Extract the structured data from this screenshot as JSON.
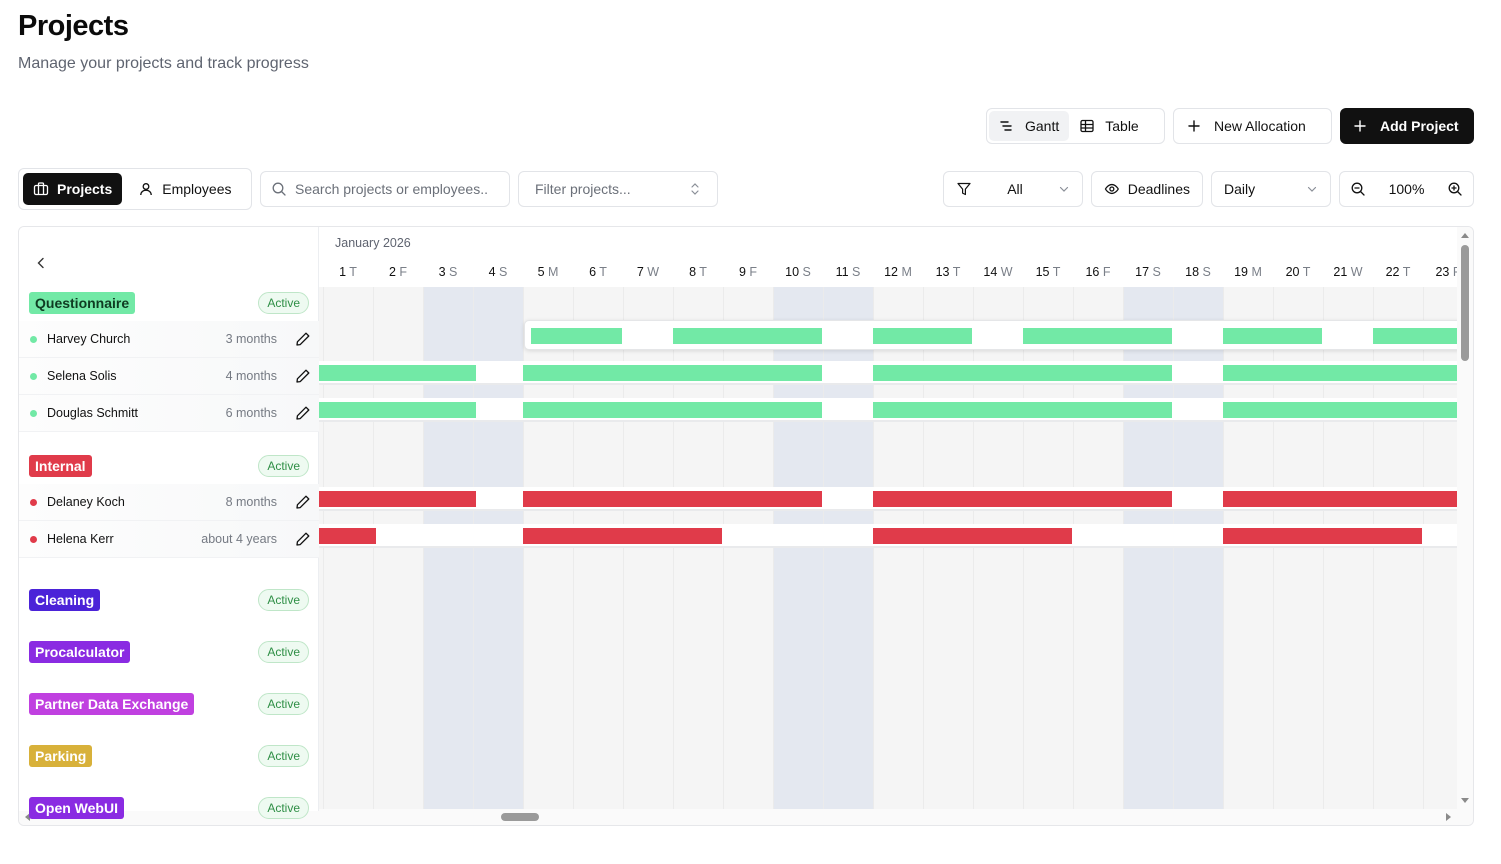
{
  "header": {
    "title": "Projects",
    "subtitle": "Manage your projects and track progress"
  },
  "actions": {
    "view_gantt": "Gantt",
    "view_table": "Table",
    "new_allocation": "New Allocation",
    "add_project": "Add Project"
  },
  "toolbar": {
    "tab_projects": "Projects",
    "tab_employees": "Employees",
    "search_placeholder": "Search projects or employees..",
    "filter_placeholder": "Filter projects...",
    "status_filter": "All",
    "deadlines": "Deadlines",
    "scale": "Daily",
    "zoom": "100%"
  },
  "timeline": {
    "month": "January 2026",
    "days": [
      {
        "n": "1",
        "d": "T",
        "weekend": false
      },
      {
        "n": "2",
        "d": "F",
        "weekend": false
      },
      {
        "n": "3",
        "d": "S",
        "weekend": true
      },
      {
        "n": "4",
        "d": "S",
        "weekend": true
      },
      {
        "n": "5",
        "d": "M",
        "weekend": false
      },
      {
        "n": "6",
        "d": "T",
        "weekend": false
      },
      {
        "n": "7",
        "d": "W",
        "weekend": false
      },
      {
        "n": "8",
        "d": "T",
        "weekend": false
      },
      {
        "n": "9",
        "d": "F",
        "weekend": false
      },
      {
        "n": "10",
        "d": "S",
        "weekend": true
      },
      {
        "n": "11",
        "d": "S",
        "weekend": true
      },
      {
        "n": "12",
        "d": "M",
        "weekend": false
      },
      {
        "n": "13",
        "d": "T",
        "weekend": false
      },
      {
        "n": "14",
        "d": "W",
        "weekend": false
      },
      {
        "n": "15",
        "d": "T",
        "weekend": false
      },
      {
        "n": "16",
        "d": "F",
        "weekend": false
      },
      {
        "n": "17",
        "d": "S",
        "weekend": true
      },
      {
        "n": "18",
        "d": "S",
        "weekend": true
      },
      {
        "n": "19",
        "d": "M",
        "weekend": false
      },
      {
        "n": "20",
        "d": "T",
        "weekend": false
      },
      {
        "n": "21",
        "d": "W",
        "weekend": false
      },
      {
        "n": "22",
        "d": "T",
        "weekend": false
      },
      {
        "n": "23",
        "d": "F",
        "weekend": false
      }
    ]
  },
  "projects": [
    {
      "name": "Questionnaire",
      "tag_bg": "#72e9a6",
      "tag_fg": "#0f3b22",
      "status": "Active",
      "employees": [
        {
          "name": "Harvey Church",
          "duration": "3 months",
          "color": "#72e9a6"
        },
        {
          "name": "Selena Solis",
          "duration": "4 months",
          "color": "#72e9a6"
        },
        {
          "name": "Douglas Schmitt",
          "duration": "6 months",
          "color": "#72e9a6"
        }
      ]
    },
    {
      "name": "Internal",
      "tag_bg": "#e03b4a",
      "tag_fg": "#ffffff",
      "status": "Active",
      "employees": [
        {
          "name": "Delaney Koch",
          "duration": "8 months",
          "color": "#e03b4a"
        },
        {
          "name": "Helena Kerr",
          "duration": "about 4 years",
          "color": "#e03b4a"
        }
      ]
    },
    {
      "name": "Cleaning",
      "tag_bg": "#4b23d8",
      "tag_fg": "#ffffff",
      "status": "Active",
      "employees": []
    },
    {
      "name": "Procalculator",
      "tag_bg": "#8a2be2",
      "tag_fg": "#ffffff",
      "status": "Active",
      "employees": []
    },
    {
      "name": "Partner Data Exchange",
      "tag_bg": "#c040e0",
      "tag_fg": "#ffffff",
      "status": "Active",
      "employees": []
    },
    {
      "name": "Parking",
      "tag_bg": "#d8b13a",
      "tag_fg": "#ffffff",
      "status": "Active",
      "employees": []
    },
    {
      "name": "Open WebUI",
      "tag_bg": "#8a2be2",
      "tag_fg": "#ffffff",
      "status": "Active",
      "employees": []
    }
  ]
}
